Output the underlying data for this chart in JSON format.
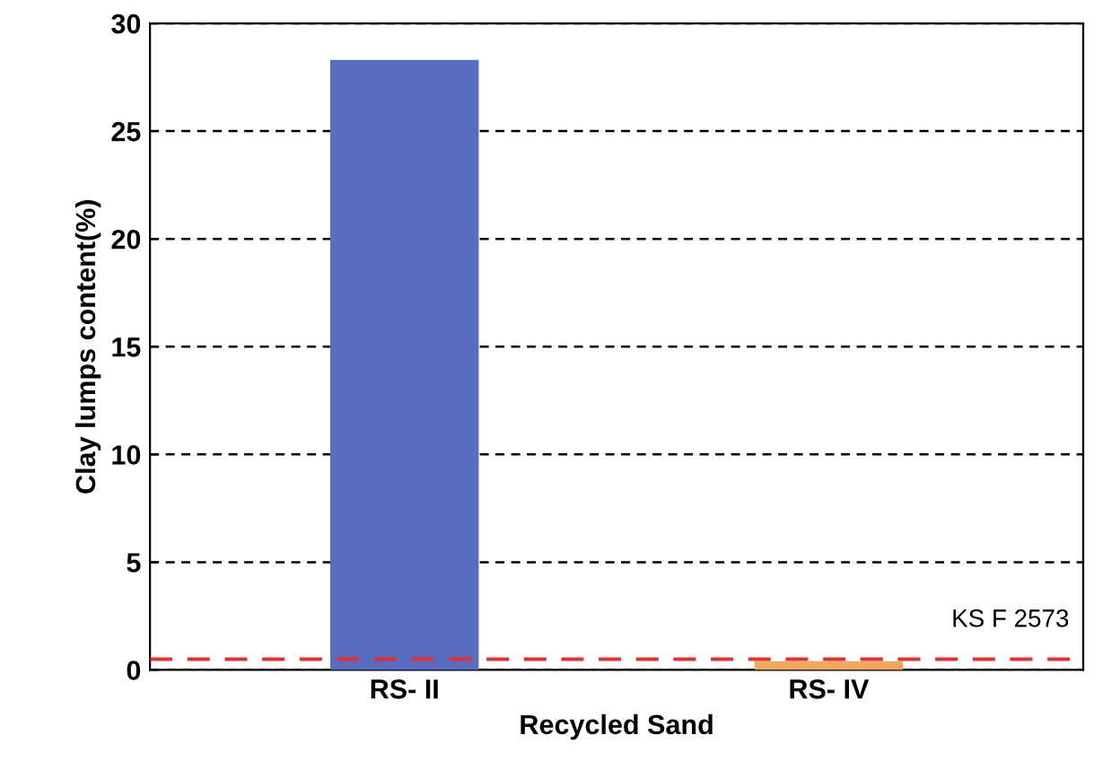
{
  "chart_data": {
    "type": "bar",
    "xlabel": "Recycled Sand",
    "ylabel": "Clay lumps content(%)",
    "categories": [
      "RS- II",
      "RS- IV"
    ],
    "values": [
      28.3,
      0.4
    ],
    "colors": [
      "#5a6cc0",
      "#f0a860"
    ],
    "ylim": [
      0,
      30
    ],
    "yticks": [
      0,
      5,
      10,
      15,
      20,
      25,
      30
    ],
    "grid": "y",
    "ref_lines": [
      {
        "axis": "y",
        "value": 0.5,
        "label": "KS F 2573",
        "color": "#e03030",
        "line_style": "dashed"
      }
    ]
  }
}
